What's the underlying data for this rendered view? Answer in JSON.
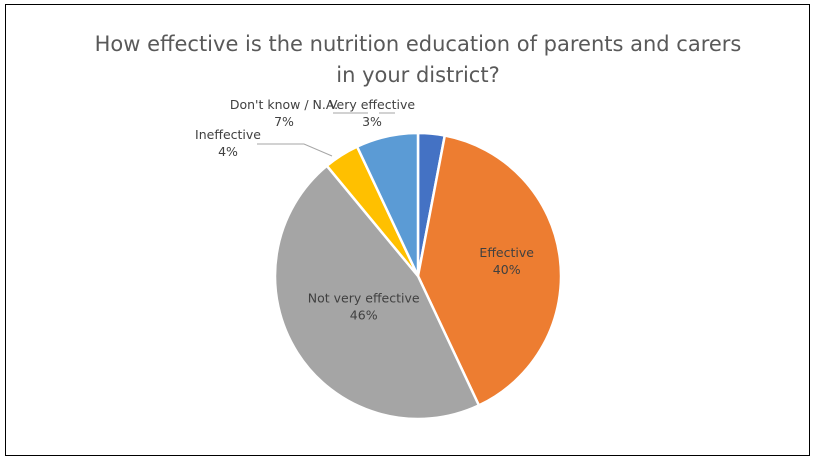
{
  "chart_data": {
    "type": "pie",
    "title_lines": [
      "How effective is the nutrition education of parents and carers",
      "in your district?"
    ],
    "slices": [
      {
        "label": "Very effective",
        "value": 3,
        "value_label": "3%",
        "color": "#4472C4",
        "label_position": "outside"
      },
      {
        "label": "Effective",
        "value": 40,
        "value_label": "40%",
        "color": "#ED7D31",
        "label_position": "inside"
      },
      {
        "label": "Not very effective",
        "value": 46,
        "value_label": "46%",
        "color": "#A5A5A5",
        "label_position": "inside"
      },
      {
        "label": "Ineffective",
        "value": 4,
        "value_label": "4%",
        "color": "#FFC000",
        "label_position": "outside"
      },
      {
        "label": "Don't know / N.A.",
        "value": 7,
        "value_label": "7%",
        "color": "#5B9BD5",
        "label_position": "outside"
      }
    ],
    "legend": "none",
    "start_angle_deg": 0,
    "direction": "clockwise"
  }
}
